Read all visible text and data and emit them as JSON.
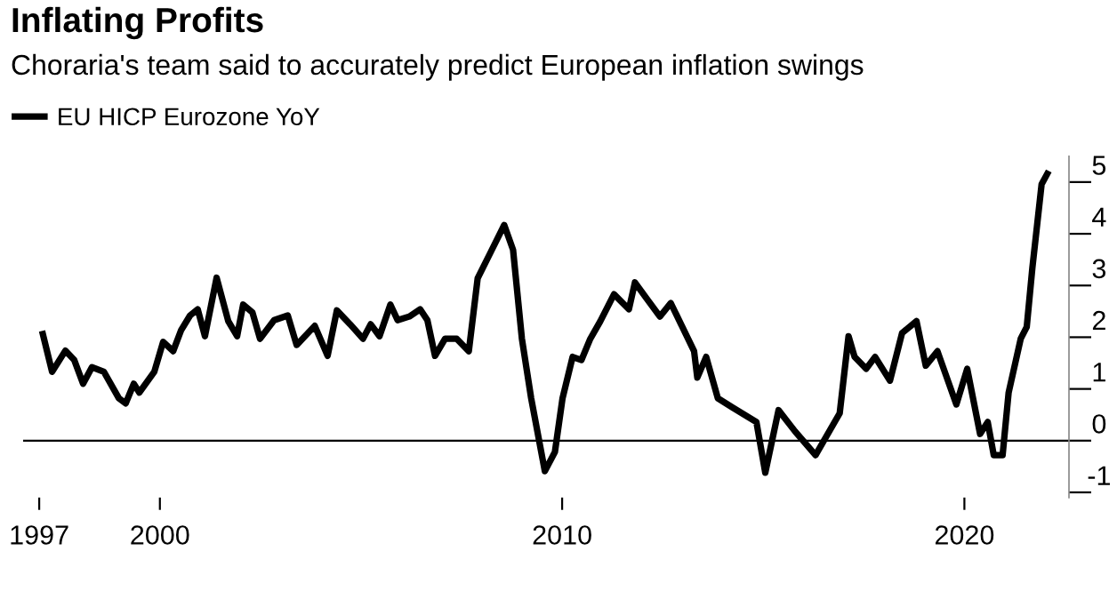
{
  "chart_data": {
    "type": "line",
    "title": "Inflating Profits",
    "subtitle": "Choraria's team said to accurately predict European inflation swings",
    "x": [
      1997.09,
      1997.32,
      1997.65,
      1997.87,
      1998.09,
      1998.31,
      1998.61,
      1998.98,
      1999.15,
      1999.35,
      1999.49,
      1999.86,
      2000.08,
      2000.33,
      2000.53,
      2000.75,
      2000.94,
      2001.12,
      2001.41,
      2001.7,
      2001.92,
      2002.07,
      2002.3,
      2002.49,
      2002.84,
      2003.18,
      2003.4,
      2003.85,
      2004.17,
      2004.4,
      2004.73,
      2005.05,
      2005.24,
      2005.46,
      2005.73,
      2005.91,
      2006.2,
      2006.47,
      2006.65,
      2006.84,
      2007.09,
      2007.38,
      2007.68,
      2007.9,
      2008.24,
      2008.56,
      2008.78,
      2009.0,
      2009.23,
      2009.57,
      2009.82,
      2010.01,
      2010.26,
      2010.48,
      2010.7,
      2010.95,
      2011.29,
      2011.66,
      2011.81,
      2012.1,
      2012.43,
      2012.7,
      2013.28,
      2013.36,
      2013.58,
      2013.87,
      2014.24,
      2014.83,
      2015.05,
      2015.38,
      2015.79,
      2016.3,
      2016.9,
      2017.12,
      2017.27,
      2017.56,
      2017.78,
      2018.15,
      2018.45,
      2018.81,
      2019.04,
      2019.33,
      2019.8,
      2020.07,
      2020.39,
      2020.58,
      2020.73,
      2020.95,
      2021.1,
      2021.4,
      2021.55,
      2021.69,
      2021.92,
      2022.06
    ],
    "series": [
      {
        "name": "EU HICP Eurozone YoY",
        "color": "#000000",
        "values": [
          2.06,
          1.33,
          1.74,
          1.56,
          1.1,
          1.42,
          1.33,
          0.82,
          0.72,
          1.1,
          0.93,
          1.33,
          1.91,
          1.73,
          2.14,
          2.42,
          2.54,
          2.02,
          3.15,
          2.31,
          2.02,
          2.63,
          2.48,
          1.97,
          2.33,
          2.42,
          1.85,
          2.22,
          1.64,
          2.52,
          2.25,
          1.97,
          2.25,
          2.02,
          2.63,
          2.33,
          2.4,
          2.54,
          2.33,
          1.64,
          1.97,
          1.97,
          1.73,
          3.14,
          3.67,
          4.17,
          3.69,
          1.97,
          0.82,
          -0.59,
          -0.22,
          0.82,
          1.62,
          1.56,
          1.97,
          2.31,
          2.83,
          2.54,
          3.06,
          2.75,
          2.4,
          2.66,
          1.73,
          1.22,
          1.62,
          0.82,
          0.64,
          0.36,
          -0.62,
          0.59,
          0.18,
          -0.28,
          0.53,
          2.02,
          1.62,
          1.39,
          1.62,
          1.16,
          2.08,
          2.31,
          1.45,
          1.73,
          0.7,
          1.39,
          0.13,
          0.36,
          -0.28,
          -0.28,
          0.93,
          1.97,
          2.2,
          3.34,
          4.96,
          5.16
        ]
      }
    ],
    "xlim": [
      1996.6,
      2022.6
    ],
    "xticks": [
      1997,
      2000,
      2010,
      2020
    ],
    "ylim": [
      -1.1,
      5.5
    ],
    "yticks": [
      -1,
      0,
      1,
      2,
      3,
      4,
      5
    ],
    "ref_lines": [
      {
        "axis": "y",
        "value": 0,
        "color": "#000000"
      }
    ],
    "legend": "top left",
    "grid": false,
    "line_style": "solid",
    "marker": "none"
  }
}
